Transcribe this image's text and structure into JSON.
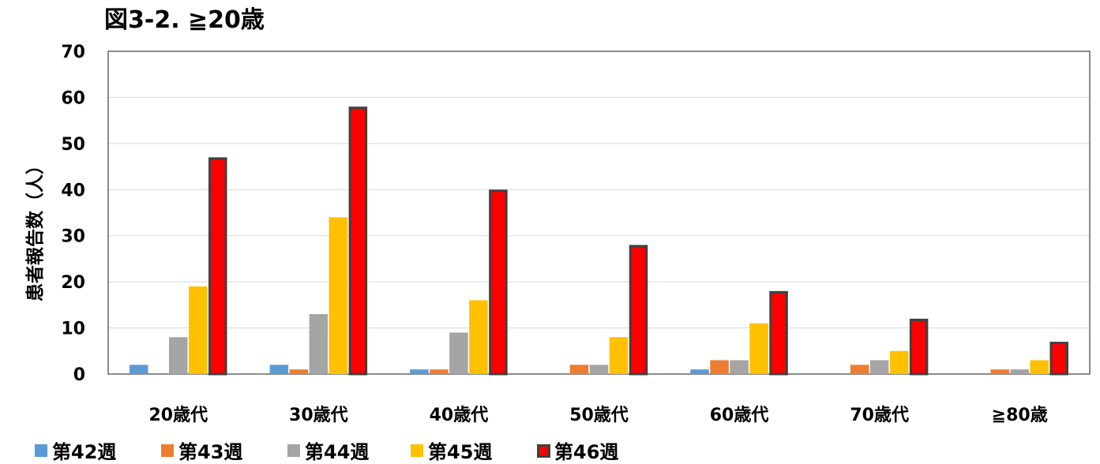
{
  "chart_data": {
    "type": "bar",
    "title": "図3-2. ≧20歳",
    "ylabel": "患者報告数（人）",
    "xlabel": "",
    "ylim": [
      0,
      70
    ],
    "yticks": [
      0,
      10,
      20,
      30,
      40,
      50,
      60,
      70
    ],
    "grid": true,
    "legend_position": "bottom",
    "categories": [
      "20歳代",
      "30歳代",
      "40歳代",
      "50歳代",
      "60歳代",
      "70歳代",
      "≧80歳"
    ],
    "series": [
      {
        "name": "第42週",
        "color": "#5B9BD5",
        "values": [
          2,
          2,
          1,
          0,
          1,
          0,
          0
        ]
      },
      {
        "name": "第43週",
        "color": "#ED7D31",
        "values": [
          0,
          1,
          1,
          2,
          3,
          2,
          1
        ]
      },
      {
        "name": "第44週",
        "color": "#A5A5A5",
        "values": [
          8,
          13,
          9,
          2,
          3,
          3,
          1
        ]
      },
      {
        "name": "第45週",
        "color": "#FFC000",
        "values": [
          19,
          34,
          16,
          8,
          11,
          5,
          3
        ]
      },
      {
        "name": "第46週",
        "color": "#FF0000",
        "outline": "#404040",
        "values": [
          47,
          58,
          40,
          28,
          18,
          12,
          7
        ]
      }
    ]
  }
}
